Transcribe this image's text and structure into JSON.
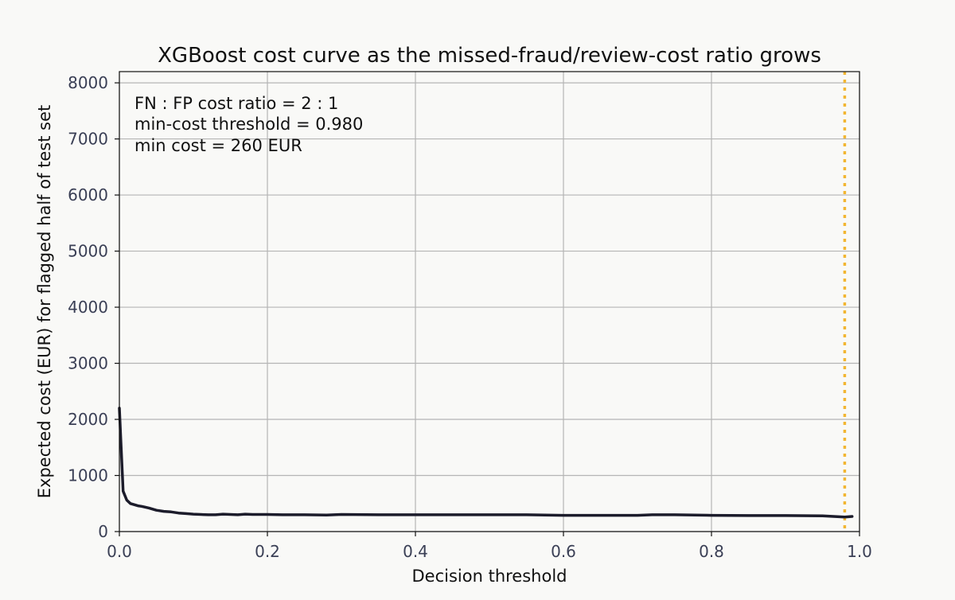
{
  "chart_data": {
    "type": "line",
    "title": "XGBoost cost curve as the missed-fraud/review-cost ratio grows",
    "xlabel": "Decision threshold",
    "ylabel": "Expected cost (EUR) for flagged half of test set",
    "xlim": [
      0.0,
      1.0
    ],
    "ylim": [
      0,
      8200
    ],
    "x_ticks": [
      0.0,
      0.2,
      0.4,
      0.6,
      0.8,
      1.0
    ],
    "x_tick_labels": [
      "0.0",
      "0.2",
      "0.4",
      "0.6",
      "0.8",
      "1.0"
    ],
    "y_ticks": [
      0,
      1000,
      2000,
      3000,
      4000,
      5000,
      6000,
      7000,
      8000
    ],
    "y_tick_labels": [
      "0",
      "1000",
      "2000",
      "3000",
      "4000",
      "5000",
      "6000",
      "7000",
      "8000"
    ],
    "grid": true,
    "annotation_lines": [
      "FN : FP cost ratio = 2 : 1",
      "min-cost threshold = 0.980",
      "min cost = 260 EUR"
    ],
    "min_cost_threshold": 0.98,
    "colors": {
      "line": "#1c1c2b",
      "marker_line": "#f2b632",
      "background": "#f9f9f7"
    },
    "series": [
      {
        "x": [
          0.0,
          0.005,
          0.01,
          0.015,
          0.02,
          0.025,
          0.03,
          0.04,
          0.05,
          0.06,
          0.07,
          0.08,
          0.09,
          0.1,
          0.11,
          0.12,
          0.13,
          0.14,
          0.15,
          0.16,
          0.17,
          0.18,
          0.2,
          0.22,
          0.25,
          0.28,
          0.3,
          0.35,
          0.4,
          0.45,
          0.5,
          0.55,
          0.6,
          0.65,
          0.7,
          0.72,
          0.75,
          0.8,
          0.85,
          0.9,
          0.95,
          0.98,
          0.99
        ],
        "y": [
          2200,
          720,
          560,
          500,
          480,
          460,
          450,
          420,
          380,
          360,
          350,
          330,
          320,
          310,
          305,
          300,
          300,
          310,
          305,
          300,
          310,
          305,
          305,
          300,
          300,
          295,
          305,
          300,
          300,
          300,
          300,
          300,
          290,
          290,
          290,
          300,
          300,
          290,
          285,
          285,
          280,
          260,
          270
        ]
      }
    ]
  }
}
